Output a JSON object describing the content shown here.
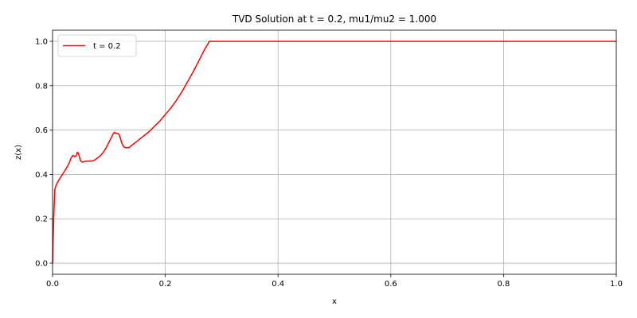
{
  "chart_data": {
    "type": "line",
    "title": "TVD Solution at t = 0.2, mu1/mu2 = 1.000",
    "xlabel": "x",
    "ylabel": "z(x)",
    "xlim": [
      0,
      1
    ],
    "ylim": [
      -0.05,
      1.05
    ],
    "xticks": [
      0,
      0.2,
      0.4,
      0.6,
      0.8,
      1.0
    ],
    "xtick_labels": [
      "0.0",
      "0.2",
      "0.4",
      "0.6",
      "0.8",
      "1.0"
    ],
    "yticks": [
      0,
      0.2,
      0.4,
      0.6,
      0.8,
      1.0
    ],
    "ytick_labels": [
      "0.0",
      "0.2",
      "0.4",
      "0.6",
      "0.8",
      "1.0"
    ],
    "grid": true,
    "legend_position": "top-left",
    "series": [
      {
        "name": "t = 0.2",
        "color": "#ff0000",
        "x": [
          0,
          0.002,
          0.004,
          0.006,
          0.01,
          0.015,
          0.02,
          0.025,
          0.03,
          0.033,
          0.036,
          0.04,
          0.042,
          0.044,
          0.046,
          0.048,
          0.05,
          0.053,
          0.056,
          0.06,
          0.065,
          0.07,
          0.075,
          0.08,
          0.085,
          0.09,
          0.095,
          0.1,
          0.105,
          0.108,
          0.11,
          0.112,
          0.115,
          0.118,
          0.12,
          0.123,
          0.126,
          0.13,
          0.135,
          0.14,
          0.15,
          0.16,
          0.17,
          0.18,
          0.19,
          0.2,
          0.21,
          0.22,
          0.23,
          0.24,
          0.25,
          0.26,
          0.27,
          0.275,
          0.278,
          0.28,
          0.285,
          0.3,
          0.4,
          0.5,
          0.6,
          0.7,
          0.8,
          0.9,
          1.0
        ],
        "y": [
          0.0,
          0.2,
          0.33,
          0.35,
          0.37,
          0.39,
          0.41,
          0.43,
          0.455,
          0.475,
          0.485,
          0.48,
          0.485,
          0.5,
          0.495,
          0.475,
          0.46,
          0.455,
          0.458,
          0.46,
          0.46,
          0.46,
          0.465,
          0.475,
          0.485,
          0.5,
          0.52,
          0.545,
          0.57,
          0.585,
          0.59,
          0.585,
          0.585,
          0.58,
          0.565,
          0.54,
          0.525,
          0.52,
          0.52,
          0.53,
          0.55,
          0.57,
          0.59,
          0.615,
          0.64,
          0.67,
          0.7,
          0.735,
          0.775,
          0.82,
          0.865,
          0.915,
          0.965,
          0.985,
          1.0,
          1.0,
          1.0,
          1.0,
          1.0,
          1.0,
          1.0,
          1.0,
          1.0,
          1.0,
          1.0
        ]
      }
    ]
  }
}
